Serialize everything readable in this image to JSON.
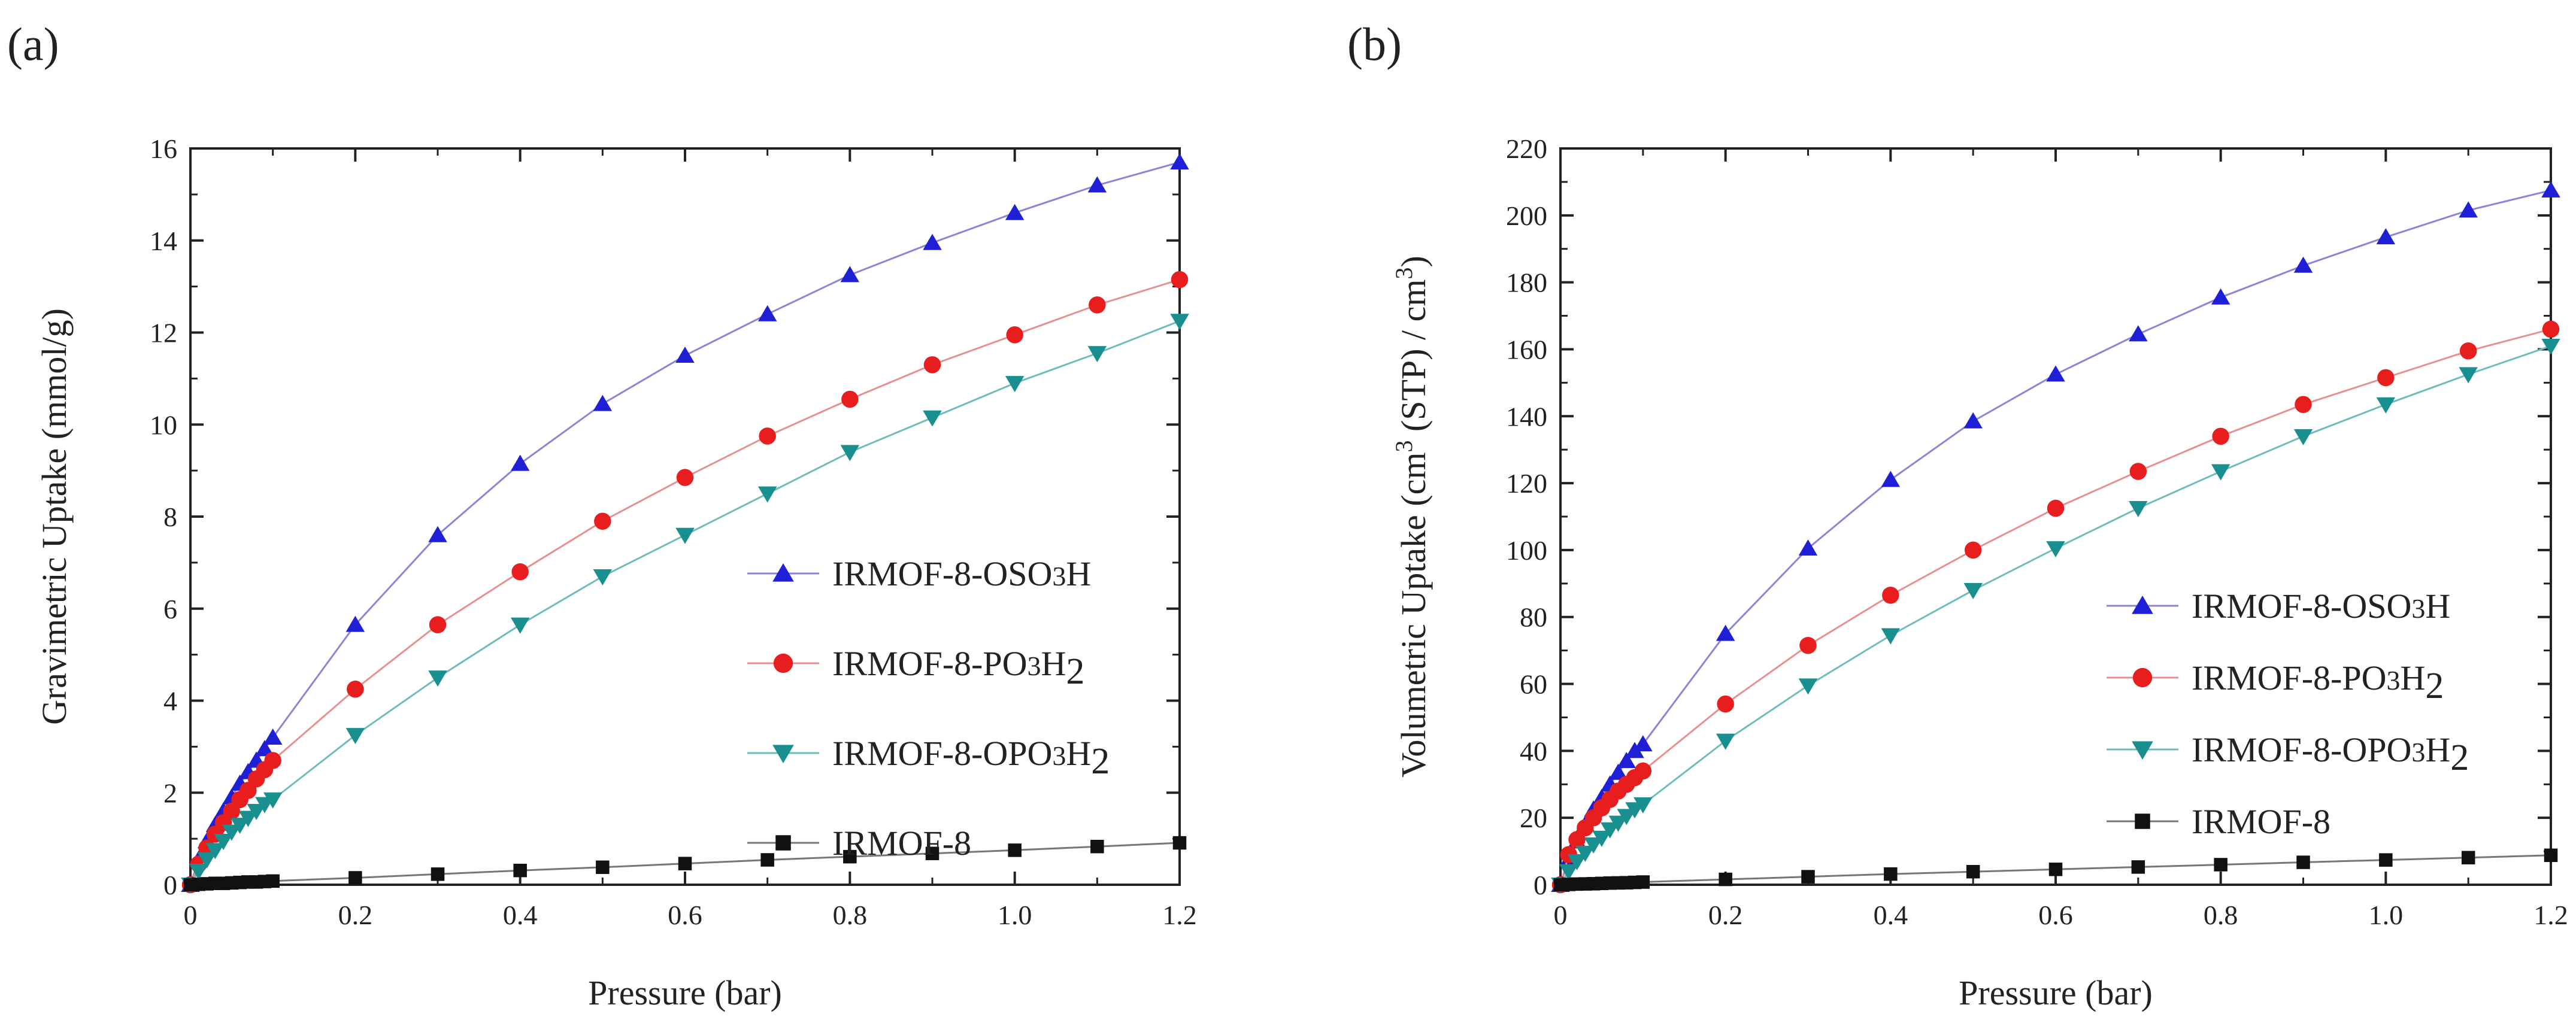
{
  "figure": {
    "panels": [
      {
        "label": "(a)"
      },
      {
        "label": "(b)"
      }
    ]
  },
  "chart_data": [
    {
      "type": "line",
      "panel": "(a)",
      "title": "",
      "xlabel": "Pressure (bar)",
      "ylabel": "Gravimetric Uptake (mmol/g)",
      "xlim": [
        0,
        1.2
      ],
      "ylim": [
        0,
        16
      ],
      "xticks": [
        0,
        0.2,
        0.4,
        0.6,
        0.8,
        1.0,
        1.2
      ],
      "xtick_labels": [
        "0",
        "0.2",
        "0.4",
        "0.6",
        "0.8",
        "1.0",
        "1.2"
      ],
      "yticks": [
        0,
        2,
        4,
        6,
        8,
        10,
        12,
        14,
        16
      ],
      "ytick_labels": [
        "0",
        "2",
        "4",
        "6",
        "8",
        "10",
        "12",
        "14",
        "16"
      ],
      "grid": false,
      "legend_position": "center-right",
      "x": [
        0,
        0.01,
        0.02,
        0.03,
        0.04,
        0.05,
        0.06,
        0.07,
        0.08,
        0.09,
        0.1,
        0.2,
        0.3,
        0.4,
        0.5,
        0.6,
        0.7,
        0.8,
        0.9,
        1.0,
        1.1,
        1.2
      ],
      "series": [
        {
          "name": "IRMOF-8-OSO3H",
          "label_main": "IRMOF-8-OSO",
          "label_sub": "3",
          "label_tail": "H",
          "color": "#1f1fd6",
          "line_color": "#8b85d6",
          "marker": "triangle-up",
          "values": [
            0,
            0.55,
            0.95,
            1.3,
            1.6,
            1.9,
            2.2,
            2.45,
            2.7,
            2.95,
            3.2,
            5.65,
            7.6,
            9.15,
            10.45,
            11.5,
            12.4,
            13.25,
            13.95,
            14.6,
            15.2,
            15.7
          ]
        },
        {
          "name": "IRMOF-8-PO3H2",
          "label_main": "IRMOF-8-PO",
          "label_sub": "3",
          "label_tail": "H",
          "label_sub2": "2",
          "color": "#e81e1e",
          "line_color": "#e89090",
          "marker": "circle",
          "values": [
            0,
            0.45,
            0.8,
            1.1,
            1.35,
            1.6,
            1.85,
            2.05,
            2.3,
            2.5,
            2.7,
            4.25,
            5.65,
            6.8,
            7.9,
            8.85,
            9.75,
            10.55,
            11.3,
            11.95,
            12.6,
            13.15
          ]
        },
        {
          "name": "IRMOF-8-OPO3H2",
          "label_main": "IRMOF-8-OPO",
          "label_sub": "3",
          "label_tail": "H",
          "label_sub2": "2",
          "color": "#1a8f8f",
          "line_color": "#6fbcbc",
          "marker": "triangle-down",
          "values": [
            0,
            0.3,
            0.55,
            0.75,
            0.95,
            1.15,
            1.3,
            1.45,
            1.6,
            1.75,
            1.85,
            3.25,
            4.5,
            5.65,
            6.7,
            7.6,
            8.5,
            9.4,
            10.15,
            10.9,
            11.55,
            12.25
          ]
        },
        {
          "name": "IRMOF-8",
          "label_main": "IRMOF-8",
          "color": "#111111",
          "line_color": "#777777",
          "marker": "square",
          "values": [
            0,
            0.01,
            0.02,
            0.03,
            0.03,
            0.04,
            0.05,
            0.06,
            0.06,
            0.07,
            0.08,
            0.15,
            0.23,
            0.31,
            0.38,
            0.46,
            0.54,
            0.61,
            0.68,
            0.75,
            0.83,
            0.91
          ]
        }
      ]
    },
    {
      "type": "line",
      "panel": "(b)",
      "title": "",
      "xlabel": "Pressure (bar)",
      "ylabel": "Volumetric Uptake (cm3 (STP) / cm3)",
      "ylabel_parts": [
        "Volumetric Uptake (cm",
        "3",
        " (STP) / cm",
        "3",
        ")"
      ],
      "xlim": [
        0,
        1.2
      ],
      "ylim": [
        0,
        220
      ],
      "xticks": [
        0,
        0.2,
        0.4,
        0.6,
        0.8,
        1.0,
        1.2
      ],
      "xtick_labels": [
        "0",
        "0.2",
        "0.4",
        "0.6",
        "0.8",
        "1.0",
        "1.2"
      ],
      "yticks": [
        0,
        20,
        40,
        60,
        80,
        100,
        120,
        140,
        160,
        180,
        200,
        220
      ],
      "ytick_labels": [
        "0",
        "20",
        "40",
        "60",
        "80",
        "100",
        "120",
        "140",
        "160",
        "180",
        "200",
        "220"
      ],
      "grid": false,
      "legend_position": "bottom-right",
      "x": [
        0,
        0.01,
        0.02,
        0.03,
        0.04,
        0.05,
        0.06,
        0.07,
        0.08,
        0.09,
        0.1,
        0.2,
        0.3,
        0.4,
        0.5,
        0.6,
        0.7,
        0.8,
        0.9,
        1.0,
        1.1,
        1.2
      ],
      "series": [
        {
          "name": "IRMOF-8-OSO3H",
          "label_main": "IRMOF-8-OSO",
          "label_sub": "3",
          "label_tail": "H",
          "color": "#1f1fd6",
          "line_color": "#8b85d6",
          "marker": "triangle-up",
          "values": [
            0,
            7.5,
            13,
            18,
            22.5,
            26,
            30,
            33.5,
            37,
            40,
            42,
            75,
            100.5,
            121,
            138.5,
            152.5,
            164.5,
            175.5,
            185,
            193.5,
            201.5,
            207.5
          ]
        },
        {
          "name": "IRMOF-8-PO3H2",
          "label_main": "IRMOF-8-PO",
          "label_sub": "3",
          "label_tail": "H",
          "label_sub2": "2",
          "color": "#e81e1e",
          "line_color": "#e89090",
          "marker": "circle",
          "values": [
            0,
            9,
            13.5,
            17,
            20,
            23,
            25.5,
            28,
            30,
            32,
            34,
            54,
            71.5,
            86.5,
            100,
            112.5,
            123.5,
            134,
            143.5,
            151.5,
            159.5,
            166
          ]
        },
        {
          "name": "IRMOF-8-OPO3H2",
          "label_main": "IRMOF-8-OPO",
          "label_sub": "3",
          "label_tail": "H",
          "label_sub2": "2",
          "color": "#1a8f8f",
          "line_color": "#6fbcbc",
          "marker": "triangle-down",
          "values": [
            0,
            4,
            7,
            9.5,
            12,
            14,
            16.5,
            18.5,
            20.5,
            22.5,
            24,
            43,
            59.5,
            74.5,
            88,
            100.5,
            112.5,
            123.5,
            134,
            143.5,
            152.5,
            161
          ]
        },
        {
          "name": "IRMOF-8",
          "label_main": "IRMOF-8",
          "color": "#111111",
          "line_color": "#777777",
          "marker": "square",
          "values": [
            0,
            0.1,
            0.2,
            0.25,
            0.3,
            0.4,
            0.5,
            0.55,
            0.6,
            0.7,
            0.8,
            1.6,
            2.4,
            3.2,
            3.9,
            4.6,
            5.3,
            6.0,
            6.7,
            7.4,
            8.1,
            8.8
          ]
        }
      ]
    }
  ]
}
